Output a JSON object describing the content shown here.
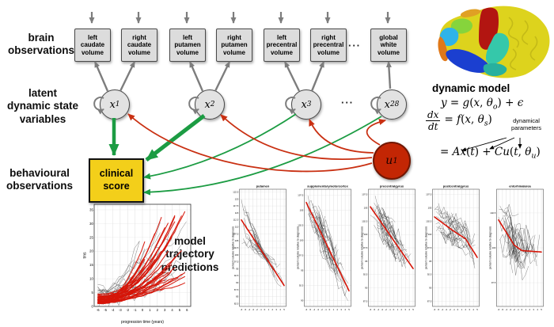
{
  "colors": {
    "green_arrow": "#1c9c43",
    "red_arrow": "#c93012",
    "gray_arrow": "#7d7d7d",
    "node_fill": "#e2e2e2",
    "obs_box_fill": "#dcdcdc",
    "clinical_fill": "#f3cf1a",
    "input_node_fill": "#c32604",
    "trend_red": "#d61508",
    "spaghetti_black": "#2a2a2a"
  },
  "labels": {
    "brain_observations": "brain\nobservations",
    "latent_variables": "latent\ndynamic state\nvariables",
    "behavioural_observations": "behavioural\nobservations",
    "model_trajectory": "model\ntrajectory\npredictions",
    "dynamic_model": "dynamic model",
    "dynamical_parameters": "dynamical\nparameters",
    "ellipsis_boxes": "···",
    "ellipsis_nodes": "···"
  },
  "observations": {
    "boxes": [
      {
        "label": "left\ncaudate\nvolume"
      },
      {
        "label": "right\ncaudate\nvolume"
      },
      {
        "label": "left\nputamen\nvolume"
      },
      {
        "label": "right\nputamen\nvolume"
      },
      {
        "label": "left\nprecentral\nvolume"
      },
      {
        "label": "right\nprecentral\nvolume"
      },
      {
        "label": "global\nwhite\nvolume"
      }
    ]
  },
  "latent_nodes": [
    {
      "base": "x",
      "sub": "1"
    },
    {
      "base": "x",
      "sub": "2"
    },
    {
      "base": "x",
      "sub": "3"
    },
    {
      "base": "x",
      "sub": "28"
    }
  ],
  "input_node": {
    "base": "u",
    "sub": "1"
  },
  "clinical": {
    "label": "clinical\nscore"
  },
  "equations": {
    "eq1": [
      {
        "t": "i",
        "s": "y"
      },
      {
        "t": "n",
        "s": " = "
      },
      {
        "t": "i",
        "s": "g"
      },
      {
        "t": "n",
        "s": "("
      },
      {
        "t": "i",
        "s": "x"
      },
      {
        "t": "n",
        "s": ", "
      },
      {
        "t": "i",
        "s": "θ"
      },
      {
        "t": "sub",
        "s": "o"
      },
      {
        "t": "n",
        "s": ") + "
      },
      {
        "t": "i",
        "s": "ϵ"
      }
    ],
    "frac_num": "dx",
    "frac_den": "dt",
    "eq2rhs": [
      {
        "t": "n",
        "s": "= "
      },
      {
        "t": "i",
        "s": "f"
      },
      {
        "t": "n",
        "s": "("
      },
      {
        "t": "i",
        "s": "x"
      },
      {
        "t": "n",
        "s": ", "
      },
      {
        "t": "i",
        "s": "θ"
      },
      {
        "t": "sub",
        "s": "s"
      },
      {
        "t": "n",
        "s": ")"
      }
    ],
    "eq3": [
      {
        "t": "n",
        "s": "= "
      },
      {
        "t": "i",
        "s": "Ax"
      },
      {
        "t": "n",
        "s": "("
      },
      {
        "t": "i",
        "s": "t"
      },
      {
        "t": "n",
        "s": ") + "
      },
      {
        "t": "i",
        "s": "Cu"
      },
      {
        "t": "n",
        "s": "("
      },
      {
        "t": "i",
        "s": "t"
      },
      {
        "t": "n",
        "s": ", "
      },
      {
        "t": "i",
        "s": "θ"
      },
      {
        "t": "sub",
        "s": "u"
      },
      {
        "t": "n",
        "s": ")"
      }
    ]
  },
  "chart_data": [
    {
      "type": "line",
      "id": "tms-trajectories",
      "title": "",
      "xlabel": "progression time (years)",
      "ylabel": "tms",
      "xticks": [
        -6,
        -5,
        -4,
        -3,
        -2,
        -1,
        0,
        1,
        2,
        3,
        4,
        5,
        6
      ],
      "ylim": [
        0,
        37
      ],
      "yticks": [
        0,
        5,
        10,
        15,
        20,
        25,
        30,
        35
      ],
      "grid": true,
      "legend": "none",
      "red_fan": {
        "count": 38,
        "y_start_range": [
          1,
          4.5
        ],
        "y_end_range": [
          8,
          36
        ],
        "x_end_range": [
          0.5,
          6
        ],
        "power": 2.1
      },
      "black_lines": {
        "count": 22,
        "jitter": 2.6
      }
    },
    {
      "type": "line",
      "id": "putamen",
      "title": "putamen",
      "xlabel": "",
      "ylabel": "percent volume relative to diagnosis",
      "xticks": [
        -6,
        -5,
        -4,
        -3,
        -2,
        -1,
        0,
        1,
        2,
        3,
        4,
        5
      ],
      "ylim": [
        81.5,
        123.5
      ],
      "yticks": [
        82.5,
        85,
        87.5,
        90,
        92.5,
        95,
        97.5,
        100,
        102.5,
        105,
        107.5,
        110,
        112.5,
        115,
        117.5,
        120,
        122.5
      ],
      "grid": true,
      "red_trend_points": [
        [
          -6,
          112.5
        ],
        [
          5,
          89
        ]
      ],
      "spaghetti": {
        "count": 26,
        "spread": 5.5,
        "noise": 2.2,
        "funnel": true
      }
    },
    {
      "type": "line",
      "id": "supplementarymotorcortex",
      "title": "supplementarymotorcortex",
      "xlabel": "",
      "ylabel": "percent volume relative to diagnosis",
      "xticks": [
        -6,
        -5,
        -4,
        -3,
        -2,
        -1,
        0,
        1,
        2,
        3,
        4,
        5
      ],
      "ylim": [
        89,
        108.5
      ],
      "yticks": [
        90,
        92.5,
        95,
        97.5,
        100,
        102.5,
        105,
        107.5
      ],
      "grid": true,
      "red_trend_points": [
        [
          -6,
          106.3
        ],
        [
          5,
          91.6
        ]
      ],
      "spaghetti": {
        "count": 30,
        "spread": 2.8,
        "noise": 1.5,
        "funnel": false
      }
    },
    {
      "type": "line",
      "id": "precentralgyrus",
      "title": "precentralgyrus",
      "xlabel": "",
      "ylabel": "percent volume relative to diagnosis",
      "xticks": [
        -6,
        -5,
        -4,
        -3,
        -2,
        -1,
        0,
        1,
        2,
        3,
        4,
        5
      ],
      "ylim": [
        86.5,
        108.5
      ],
      "yticks": [
        87.5,
        90,
        92.5,
        95,
        97.5,
        100,
        102.5,
        105,
        107.5
      ],
      "grid": true,
      "red_trend_points": [
        [
          -6,
          105.2
        ],
        [
          5,
          93.6
        ]
      ],
      "spaghetti": {
        "count": 30,
        "spread": 2.6,
        "noise": 1.5,
        "funnel": false
      }
    },
    {
      "type": "line",
      "id": "postcentralgyrus",
      "title": "postcentralgyrus",
      "xlabel": "",
      "ylabel": "percent volume relative to diagnosis",
      "xticks": [
        -6,
        -5,
        -4,
        -3,
        -2,
        -1,
        0,
        1,
        2,
        3,
        4,
        5
      ],
      "ylim": [
        86.5,
        108.5
      ],
      "yticks": [
        87.5,
        90,
        92.5,
        95,
        97.5,
        100,
        102.5,
        105,
        107.5
      ],
      "grid": true,
      "red_trend_points": [
        [
          -6,
          103.3
        ],
        [
          -1,
          100.6
        ],
        [
          2,
          99.2
        ],
        [
          5,
          95.7
        ]
      ],
      "spaghetti": {
        "count": 30,
        "spread": 2.4,
        "noise": 1.5,
        "funnel": false
      }
    },
    {
      "type": "line",
      "id": "entorhinalarea",
      "title": "entorhinalarea",
      "xlabel": "",
      "ylabel": "percent volume relative to diagnosis",
      "xticks": [
        -6,
        -5,
        -4,
        -3,
        -2,
        -1,
        0,
        1,
        2,
        3,
        4,
        5
      ],
      "ylim": [
        95.8,
        104.2
      ],
      "yticks": [
        97.5,
        100,
        102.5
      ],
      "grid": true,
      "red_trend_points": [
        [
          -6,
          102
        ],
        [
          -2,
          100.2
        ],
        [
          0,
          99.8
        ],
        [
          5,
          99.7
        ]
      ],
      "spaghetti": {
        "count": 30,
        "spread": 1.5,
        "noise": 1.1,
        "funnel": false
      }
    }
  ]
}
